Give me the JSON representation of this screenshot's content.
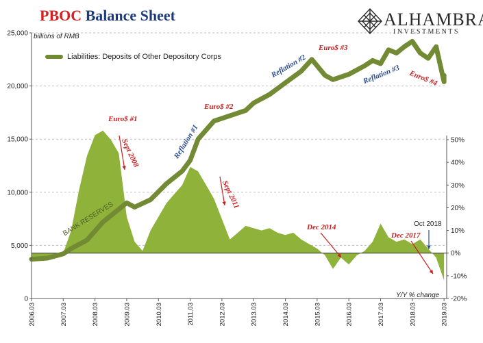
{
  "title": {
    "accent": "PBOC",
    "rest": " Balance Sheet"
  },
  "brand": {
    "name": "ALHAMBRA",
    "tagline": "INVESTMENTS",
    "logo_icon": "diamond-lattice-icon"
  },
  "units_label": "billions of RMB",
  "secondary_axis_label": "Y/Y % change",
  "colors": {
    "liability_line": "#738a34",
    "yoy_area": "#8fb23a",
    "event_red": "#c91d1d",
    "phase_blue": "#2a4b8d",
    "grid": "#bfbfbf"
  },
  "chart_data": {
    "type": "line",
    "legend_position": "top-left",
    "grid": true,
    "x": [
      "2006.03",
      "2007.03",
      "2008.03",
      "2009.03",
      "2010.03",
      "2011.03",
      "2012.03",
      "2013.03",
      "2014.03",
      "2015.03",
      "2016.03",
      "2017.03",
      "2018.03",
      "2019.03"
    ],
    "y_left": {
      "ticks": [
        "0",
        "5,000",
        "10,000",
        "15,000",
        "20,000",
        "25,000"
      ],
      "lim": [
        0,
        25000
      ]
    },
    "y_right": {
      "ticks": [
        "-20%",
        "-10%",
        "0%",
        "10%",
        "20%",
        "30%",
        "40%",
        "50%"
      ],
      "lim": [
        -20,
        50
      ]
    },
    "series": [
      {
        "name": "Liabilities: Deposits of Other Depository Corps",
        "axis": "left",
        "points": [
          [
            "2006.03",
            3700
          ],
          [
            "2006.09",
            3800
          ],
          [
            "2007.03",
            4200
          ],
          [
            "2007.06",
            4700
          ],
          [
            "2007.12",
            5500
          ],
          [
            "2008.06",
            7200
          ],
          [
            "2008.12",
            8400
          ],
          [
            "2009.03",
            9000
          ],
          [
            "2009.06",
            8600
          ],
          [
            "2009.12",
            9300
          ],
          [
            "2010.06",
            10800
          ],
          [
            "2010.12",
            12000
          ],
          [
            "2011.03",
            13000
          ],
          [
            "2011.06",
            15000
          ],
          [
            "2011.12",
            16700
          ],
          [
            "2012.06",
            17200
          ],
          [
            "2012.12",
            17700
          ],
          [
            "2013.03",
            18400
          ],
          [
            "2013.09",
            19200
          ],
          [
            "2014.03",
            20300
          ],
          [
            "2014.09",
            21400
          ],
          [
            "2015.01",
            22500
          ],
          [
            "2015.03",
            21900
          ],
          [
            "2015.06",
            21000
          ],
          [
            "2015.09",
            20600
          ],
          [
            "2016.03",
            21100
          ],
          [
            "2016.09",
            21900
          ],
          [
            "2016.12",
            22400
          ],
          [
            "2017.03",
            22100
          ],
          [
            "2017.06",
            23400
          ],
          [
            "2017.09",
            23100
          ],
          [
            "2017.12",
            23700
          ],
          [
            "2018.03",
            24200
          ],
          [
            "2018.06",
            23100
          ],
          [
            "2018.09",
            22600
          ],
          [
            "2018.12",
            23700
          ],
          [
            "2019.03",
            20400
          ],
          [
            "2019.03",
            21000
          ]
        ]
      },
      {
        "name": "",
        "axis": "right",
        "type": "area",
        "points": [
          [
            "2006.03",
            -3
          ],
          [
            "2006.09",
            -2
          ],
          [
            "2007.03",
            0
          ],
          [
            "2007.06",
            10
          ],
          [
            "2007.09",
            28
          ],
          [
            "2007.12",
            43
          ],
          [
            "2008.03",
            52
          ],
          [
            "2008.06",
            54
          ],
          [
            "2008.09",
            50
          ],
          [
            "2008.12",
            44
          ],
          [
            "2009.03",
            16
          ],
          [
            "2009.06",
            5
          ],
          [
            "2009.09",
            1
          ],
          [
            "2009.12",
            10
          ],
          [
            "2010.03",
            16
          ],
          [
            "2010.06",
            22
          ],
          [
            "2010.09",
            26
          ],
          [
            "2010.12",
            30
          ],
          [
            "2011.03",
            38
          ],
          [
            "2011.06",
            36
          ],
          [
            "2011.09",
            30
          ],
          [
            "2011.12",
            24
          ],
          [
            "2012.03",
            15
          ],
          [
            "2012.06",
            6
          ],
          [
            "2012.09",
            9
          ],
          [
            "2012.12",
            12
          ],
          [
            "2013.03",
            11
          ],
          [
            "2013.06",
            10
          ],
          [
            "2013.09",
            11
          ],
          [
            "2013.12",
            9
          ],
          [
            "2014.03",
            8
          ],
          [
            "2014.06",
            9
          ],
          [
            "2014.09",
            6
          ],
          [
            "2014.12",
            4
          ],
          [
            "2015.03",
            2
          ],
          [
            "2015.06",
            -1
          ],
          [
            "2015.09",
            -7
          ],
          [
            "2015.12",
            -2
          ],
          [
            "2016.03",
            -5
          ],
          [
            "2016.06",
            -1
          ],
          [
            "2016.09",
            1
          ],
          [
            "2016.12",
            5
          ],
          [
            "2017.03",
            13
          ],
          [
            "2017.06",
            7
          ],
          [
            "2017.09",
            5
          ],
          [
            "2017.12",
            6
          ],
          [
            "2018.03",
            4
          ],
          [
            "2018.06",
            6
          ],
          [
            "2018.09",
            2
          ],
          [
            "2018.12",
            -2
          ],
          [
            "2019.03",
            -12
          ]
        ]
      }
    ],
    "annotations": [
      {
        "text": "Euro$ #1",
        "x": "2008.03",
        "kind": "event"
      },
      {
        "text": "Sept 2008",
        "x": "2008.09",
        "kind": "event"
      },
      {
        "text": "Reflation #1",
        "x": "2010.09",
        "kind": "phase"
      },
      {
        "text": "Euro$ #2",
        "x": "2011.12",
        "kind": "event"
      },
      {
        "text": "Sept 2011",
        "x": "2011.09",
        "kind": "event"
      },
      {
        "text": "Reflation #2",
        "x": "2014.03",
        "kind": "phase"
      },
      {
        "text": "Euro$ #3",
        "x": "2015.03",
        "kind": "event"
      },
      {
        "text": "Reflation #3",
        "x": "2017.03",
        "kind": "phase"
      },
      {
        "text": "Euro$ #4",
        "x": "2018.09",
        "kind": "event"
      },
      {
        "text": "Dec 2014",
        "x": "2014.12",
        "kind": "event"
      },
      {
        "text": "Dec 2017",
        "x": "2017.12",
        "kind": "event"
      },
      {
        "text": "Oct 2018",
        "x": "2018.10",
        "kind": "marker"
      },
      {
        "text": "BANK RESERVES",
        "x": "2007.09",
        "kind": "area_label"
      }
    ]
  }
}
